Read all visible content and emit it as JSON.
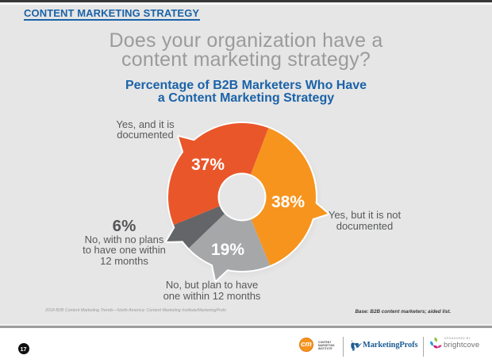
{
  "slide": {
    "kicker": "CONTENT MARKETING STRATEGY",
    "title_line1": "Does your organization have a",
    "title_line2": "content marketing strategy?",
    "subtitle_line1": "Percentage of B2B Marketers Who Have",
    "subtitle_line2": "a Content Marketing Strategy",
    "source_note": "2018 B2B Content Marketing Trends—North America: Content Marketing Institute/MarketingProfs",
    "base_note": "Base: B2B content marketers; aided list.",
    "page_number": "17"
  },
  "chart_data": {
    "type": "pie",
    "title": "Percentage of B2B Marketers Who Have a Content Marketing Strategy",
    "donut": true,
    "start_angle_deg": 21,
    "legend_position": "callout-labels",
    "slices": [
      {
        "label": "Yes, but it is not documented",
        "value": 38,
        "color": "#f7941e"
      },
      {
        "label": "No, but plan to have one within 12 months",
        "value": 19,
        "color": "#a6a7a9"
      },
      {
        "label": "No, with no plans to have one within 12 months",
        "value": 6,
        "color": "#646568"
      },
      {
        "label": "Yes, and it is documented",
        "value": 37,
        "color": "#e9562a"
      }
    ]
  },
  "labels": {
    "documented": {
      "pct": "37%",
      "line1": "Yes, and it is",
      "line2": "documented"
    },
    "not_documented": {
      "pct": "38%",
      "line1": "Yes, but it is not",
      "line2": "documented"
    },
    "plan": {
      "pct": "19%",
      "line1": "No, but plan to have",
      "line2": "one within 12 months"
    },
    "no_plans": {
      "pct": "6%",
      "line1": "No, with no plans",
      "line2": "to have one within",
      "line3": "12 months"
    }
  },
  "footer": {
    "cmi": {
      "monogram": "cm",
      "line1": "CONTENT",
      "line2": "MARKETING",
      "line3": "INSTITUTE"
    },
    "marketingprofs": "MarketingProfs",
    "sponsored_by": "SPONSORED BY",
    "sponsor_name": "brightcove"
  },
  "colors": {
    "background": "#e6e6e6",
    "accent_blue": "#1b63a8",
    "title_gray": "#9b9b9b",
    "label_gray": "#58595b",
    "orange": "#f7941e",
    "red_orange": "#e9562a",
    "light_gray_slice": "#a6a7a9",
    "dark_gray_slice": "#646568"
  }
}
